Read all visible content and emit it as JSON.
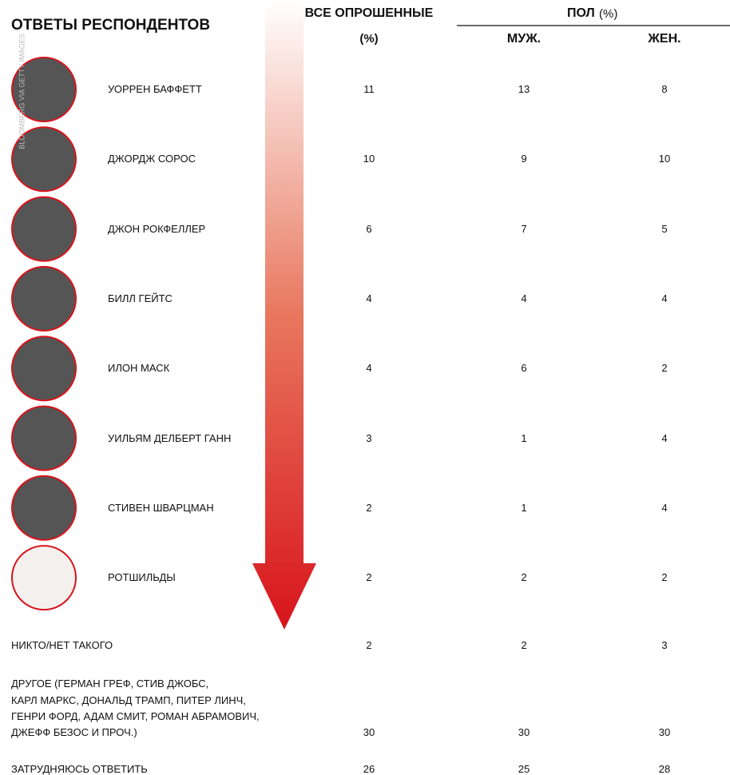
{
  "credit": "BLOOMBERG VIA GETTY IMAGES",
  "header": {
    "title": "ОТВЕТЫ РЕСПОНДЕНТОВ",
    "all": "ВСЕ ОПРОШЕННЫЕ",
    "all_unit": "(%)",
    "gender": "ПОЛ",
    "gender_unit": "(%)",
    "male": "МУЖ.",
    "female": "ЖЕН."
  },
  "people": [
    {
      "name": "УОРРЕН БАФФЕТТ",
      "all": 11,
      "male": 13,
      "female": 8
    },
    {
      "name": "ДЖОРДЖ СОРОС",
      "all": 10,
      "male": 9,
      "female": 10
    },
    {
      "name": "ДЖОН РОКФЕЛЛЕР",
      "all": 6,
      "male": 7,
      "female": 5
    },
    {
      "name": "БИЛЛ ГЕЙТС",
      "all": 4,
      "male": 4,
      "female": 4
    },
    {
      "name": "ИЛОН МАСК",
      "all": 4,
      "male": 6,
      "female": 2
    },
    {
      "name": "УИЛЬЯМ ДЕЛБЕРТ ГАНН",
      "all": 3,
      "male": 1,
      "female": 4
    },
    {
      "name": "СТИВЕН ШВАРЦМАН",
      "all": 2,
      "male": 1,
      "female": 4
    },
    {
      "name": "РОТШИЛЬДЫ",
      "all": 2,
      "male": 2,
      "female": 2
    }
  ],
  "other_rows": [
    {
      "lines": [
        "НИКТО/НЕТ ТАКОГО"
      ],
      "all": 2,
      "male": 2,
      "female": 3
    },
    {
      "lines": [
        "ДРУГОЕ (ГЕРМАН ГРЕФ, СТИВ ДЖОБС,",
        "КАРЛ МАРКС, ДОНАЛЬД ТРАМП, ПИТЕР ЛИНЧ,",
        "ГЕНРИ ФОРД, АДАМ СМИТ, РОМАН АБРАМОВИЧ,",
        "ДЖЕФФ БЕЗОС И ПРОЧ.)"
      ],
      "all": 30,
      "male": 30,
      "female": 30
    },
    {
      "lines": [
        "ЗАТРУДНЯЮСЬ ОТВЕТИТЬ"
      ],
      "all": 26,
      "male": 25,
      "female": 28
    }
  ]
}
